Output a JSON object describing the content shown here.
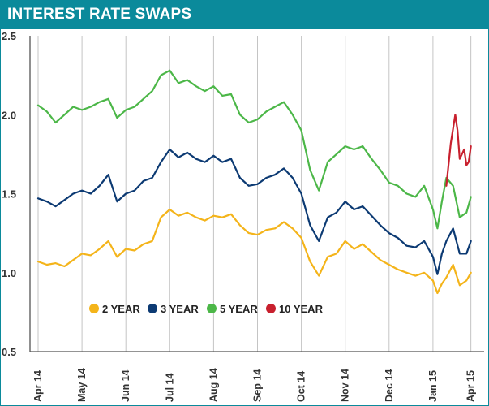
{
  "header": {
    "title": "INTEREST RATE SWAPS",
    "background": "#0b8a9b"
  },
  "chart_data": {
    "type": "line",
    "title": "INTEREST RATE SWAPS",
    "xlabel": "",
    "ylabel": "",
    "ylim": [
      0.5,
      2.5
    ],
    "xlim": [
      0,
      12.1
    ],
    "yticks": [
      0.5,
      1.0,
      1.5,
      2.0,
      2.5
    ],
    "ytick_labels": [
      "0.5",
      "1.0",
      "1.5",
      "2.0",
      "2.5"
    ],
    "categories": [
      "Apr 14",
      "May 14",
      "Jun 14",
      "Jul 14",
      "Aug 14",
      "Sep 14",
      "Oct 14",
      "Nov 14",
      "Dec 14",
      "Jan 15",
      "Apr 15"
    ],
    "category_x": [
      0,
      1,
      2,
      3,
      4,
      5,
      6,
      7,
      8,
      9,
      12
    ],
    "x_tick_display_x": [
      0,
      1,
      2,
      3,
      4,
      5,
      6,
      7,
      8,
      9,
      9.85
    ],
    "vertical_grid": true,
    "legend": "inside-bottom-center",
    "series": [
      {
        "name": "2 YEAR",
        "color": "#f4b41a",
        "x": [
          0,
          0.2,
          0.4,
          0.6,
          0.8,
          1.0,
          1.2,
          1.4,
          1.6,
          1.8,
          2.0,
          2.2,
          2.4,
          2.6,
          2.8,
          3.0,
          3.2,
          3.4,
          3.6,
          3.8,
          4.0,
          4.2,
          4.4,
          4.6,
          4.8,
          5.0,
          5.2,
          5.4,
          5.6,
          5.8,
          6.0,
          6.2,
          6.4,
          6.6,
          6.8,
          7.0,
          7.2,
          7.4,
          7.6,
          7.8,
          8.0,
          8.2,
          8.4,
          8.6,
          8.8,
          9.0,
          9.1,
          9.2,
          9.3,
          9.45,
          9.6,
          9.75,
          9.85
        ],
        "values": [
          1.07,
          1.05,
          1.06,
          1.04,
          1.08,
          1.12,
          1.11,
          1.15,
          1.2,
          1.1,
          1.15,
          1.14,
          1.18,
          1.2,
          1.35,
          1.4,
          1.36,
          1.38,
          1.35,
          1.33,
          1.36,
          1.35,
          1.37,
          1.3,
          1.25,
          1.24,
          1.27,
          1.28,
          1.32,
          1.28,
          1.22,
          1.07,
          0.98,
          1.1,
          1.12,
          1.2,
          1.15,
          1.18,
          1.13,
          1.08,
          1.05,
          1.02,
          1.0,
          0.98,
          1.0,
          0.95,
          0.87,
          0.93,
          0.97,
          1.05,
          0.92,
          0.95,
          1.0
        ]
      },
      {
        "name": "3 YEAR",
        "color": "#0c3a73",
        "x": [
          0,
          0.2,
          0.4,
          0.6,
          0.8,
          1.0,
          1.2,
          1.4,
          1.6,
          1.8,
          2.0,
          2.2,
          2.4,
          2.6,
          2.8,
          3.0,
          3.2,
          3.4,
          3.6,
          3.8,
          4.0,
          4.2,
          4.4,
          4.6,
          4.8,
          5.0,
          5.2,
          5.4,
          5.6,
          5.8,
          6.0,
          6.2,
          6.4,
          6.6,
          6.8,
          7.0,
          7.2,
          7.4,
          7.6,
          7.8,
          8.0,
          8.2,
          8.4,
          8.6,
          8.8,
          9.0,
          9.1,
          9.2,
          9.3,
          9.45,
          9.6,
          9.75,
          9.85
        ],
        "values": [
          1.47,
          1.45,
          1.42,
          1.46,
          1.5,
          1.52,
          1.5,
          1.55,
          1.62,
          1.45,
          1.5,
          1.52,
          1.58,
          1.6,
          1.7,
          1.78,
          1.73,
          1.76,
          1.72,
          1.7,
          1.74,
          1.7,
          1.72,
          1.6,
          1.55,
          1.56,
          1.6,
          1.62,
          1.66,
          1.6,
          1.5,
          1.3,
          1.2,
          1.35,
          1.38,
          1.45,
          1.4,
          1.42,
          1.36,
          1.3,
          1.25,
          1.22,
          1.17,
          1.16,
          1.2,
          1.1,
          0.99,
          1.12,
          1.2,
          1.28,
          1.12,
          1.12,
          1.2
        ]
      },
      {
        "name": "5 YEAR",
        "color": "#4cb748",
        "x": [
          0,
          0.2,
          0.4,
          0.6,
          0.8,
          1.0,
          1.2,
          1.4,
          1.6,
          1.8,
          2.0,
          2.2,
          2.4,
          2.6,
          2.8,
          3.0,
          3.2,
          3.4,
          3.6,
          3.8,
          4.0,
          4.2,
          4.4,
          4.6,
          4.8,
          5.0,
          5.2,
          5.4,
          5.6,
          5.8,
          6.0,
          6.2,
          6.4,
          6.6,
          6.8,
          7.0,
          7.2,
          7.4,
          7.6,
          7.8,
          8.0,
          8.2,
          8.4,
          8.6,
          8.8,
          9.0,
          9.1,
          9.2,
          9.3,
          9.45,
          9.6,
          9.75,
          9.85
        ],
        "values": [
          2.06,
          2.02,
          1.95,
          2.0,
          2.05,
          2.03,
          2.05,
          2.08,
          2.1,
          1.98,
          2.03,
          2.05,
          2.1,
          2.15,
          2.25,
          2.28,
          2.2,
          2.22,
          2.18,
          2.15,
          2.18,
          2.12,
          2.13,
          2.0,
          1.95,
          1.97,
          2.02,
          2.05,
          2.08,
          2.0,
          1.9,
          1.65,
          1.52,
          1.7,
          1.75,
          1.8,
          1.78,
          1.8,
          1.72,
          1.65,
          1.57,
          1.55,
          1.5,
          1.48,
          1.55,
          1.4,
          1.28,
          1.45,
          1.6,
          1.55,
          1.35,
          1.38,
          1.48
        ]
      },
      {
        "name": "10 YEAR",
        "color": "#c8202e",
        "x": [
          9.3,
          9.4,
          9.5,
          9.55,
          9.6,
          9.7,
          9.75,
          9.8,
          9.85
        ],
        "values": [
          1.55,
          1.82,
          2.0,
          1.9,
          1.72,
          1.78,
          1.68,
          1.7,
          1.8
        ]
      }
    ]
  }
}
